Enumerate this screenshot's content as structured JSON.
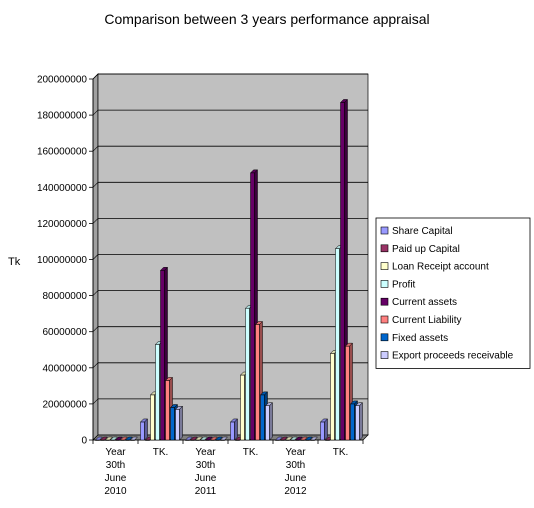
{
  "chart_data": {
    "type": "bar",
    "title": "Comparison between 3 years performance appraisal",
    "xlabel": "",
    "ylabel": "Tk",
    "ylim": [
      0,
      200000000
    ],
    "yticks": [
      "0",
      "20000000",
      "40000000",
      "60000000",
      "80000000",
      "100000000",
      "120000000",
      "140000000",
      "160000000",
      "180000000",
      "200000000"
    ],
    "categories": [
      [
        "Year",
        "30th",
        "June",
        "2010"
      ],
      [
        "TK."
      ],
      [
        "Year",
        "30th",
        "June",
        "2011"
      ],
      [
        "TK."
      ],
      [
        "Year",
        "30th",
        "June",
        "2012"
      ],
      [
        "TK."
      ]
    ],
    "series": [
      {
        "name": "Share Capital",
        "color": "#9999ff",
        "values": [
          0,
          10000000,
          0,
          10000000,
          0,
          10000000
        ]
      },
      {
        "name": "Paid up Capital",
        "color": "#993366",
        "values": [
          0,
          0,
          0,
          0,
          0,
          0
        ]
      },
      {
        "name": "Loan Receipt account",
        "color": "#ffffcc",
        "values": [
          0,
          25000000,
          0,
          36000000,
          0,
          48000000
        ]
      },
      {
        "name": "Profit",
        "color": "#ccffff",
        "values": [
          0,
          53000000,
          0,
          73000000,
          0,
          106000000
        ]
      },
      {
        "name": "Current assets",
        "color": "#660066",
        "values": [
          0,
          94000000,
          0,
          148000000,
          0,
          187000000
        ]
      },
      {
        "name": "Current Liability",
        "color": "#ff8080",
        "values": [
          0,
          33000000,
          0,
          64000000,
          0,
          52000000
        ]
      },
      {
        "name": "Fixed assets",
        "color": "#0066cc",
        "values": [
          0,
          18000000,
          0,
          25000000,
          0,
          20000000
        ]
      },
      {
        "name": "Export proceeds receivable",
        "color": "#ccccff",
        "values": [
          0,
          17000000,
          0,
          19000000,
          0,
          19000000
        ]
      }
    ],
    "legend": "right",
    "grid": true,
    "plot_background": "#c0c0c0"
  }
}
